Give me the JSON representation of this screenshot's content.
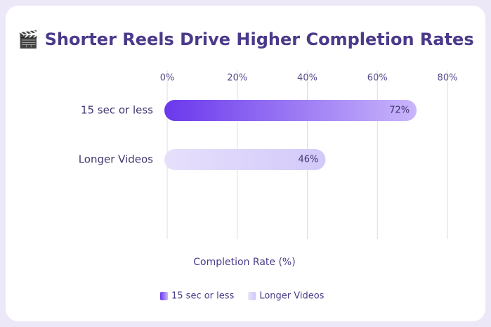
{
  "chart_data": {
    "type": "bar",
    "orientation": "horizontal",
    "title": "🎬 Shorter Reels Drive Higher Completion Rates",
    "categories": [
      "15 sec or less",
      "Longer Videos"
    ],
    "values": [
      72,
      46
    ],
    "value_labels": [
      "72%",
      "46%"
    ],
    "colors": [
      [
        "#6a38ec",
        "#c9b6fb"
      ],
      [
        "#e6e0fc",
        "#d3c9f9"
      ]
    ],
    "xlabel": "Completion Rate (%)",
    "xlim": [
      0,
      80
    ],
    "xticks": [
      {
        "value": 0,
        "label": "0%"
      },
      {
        "value": 20,
        "label": "20%"
      },
      {
        "value": 40,
        "label": "40%"
      },
      {
        "value": 60,
        "label": "60%"
      },
      {
        "value": 80,
        "label": "80%"
      }
    ],
    "grid": true,
    "legend": "bottom"
  }
}
